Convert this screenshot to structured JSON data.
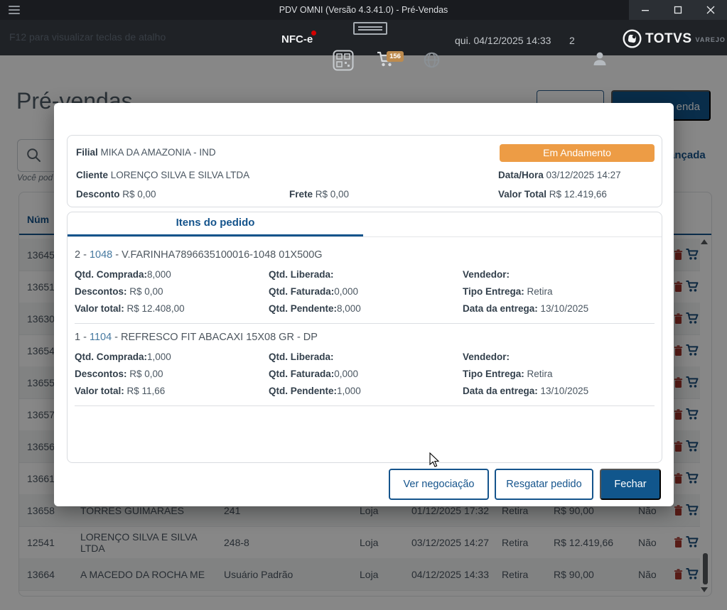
{
  "window": {
    "title": "PDV OMNI (Versão 4.3.41.0) - Pré-Vendas"
  },
  "toolbar": {
    "hotkey_hint": "F12 para visualizar teclas de atalho",
    "nfce_label": "NFC-e",
    "cart_badge": "156",
    "datetime": "qui. 04/12/2025 14:33",
    "counter": "2",
    "brand": "TOTVS",
    "brand_sub": "VAREJO"
  },
  "page": {
    "title": "Pré-vendas",
    "hint_fragment": "Você pod",
    "advanced_link_fragment": "ançada",
    "primary_button_fragment": "enda"
  },
  "table": {
    "header_fragment": "Núm",
    "rows": [
      {
        "num": "13645",
        "cliente": "",
        "cliente2": "",
        "vendedor": "",
        "origem": "",
        "data": "",
        "entrega": "",
        "valor": "",
        "flag": ""
      },
      {
        "num": "13651",
        "cliente": "",
        "cliente2": "",
        "vendedor": "",
        "origem": "",
        "data": "",
        "entrega": "",
        "valor": "",
        "flag": ""
      },
      {
        "num": "13630",
        "cliente": "",
        "cliente2": "",
        "vendedor": "",
        "origem": "",
        "data": "",
        "entrega": "",
        "valor": "",
        "flag": ""
      },
      {
        "num": "13654",
        "cliente": "",
        "cliente2": "",
        "vendedor": "",
        "origem": "",
        "data": "",
        "entrega": "",
        "valor": "",
        "flag": ""
      },
      {
        "num": "13655",
        "cliente": "",
        "cliente2": "",
        "vendedor": "",
        "origem": "",
        "data": "",
        "entrega": "",
        "valor": "",
        "flag": ""
      },
      {
        "num": "13657",
        "cliente": "",
        "cliente2": "",
        "vendedor": "",
        "origem": "",
        "data": "",
        "entrega": "",
        "valor": "",
        "flag": ""
      },
      {
        "num": "13656",
        "cliente": "",
        "cliente2": "",
        "vendedor": "",
        "origem": "",
        "data": "",
        "entrega": "",
        "valor": "",
        "flag": ""
      },
      {
        "num": "13661",
        "cliente": "",
        "cliente2": "",
        "vendedor": "",
        "origem": "",
        "data": "",
        "entrega": "",
        "valor": "",
        "flag": ""
      },
      {
        "num": "13658",
        "cliente": "",
        "cliente2": "TORRES GUIMARAES",
        "vendedor": "241",
        "origem": "Loja",
        "data": "01/12/2025 17:32",
        "entrega": "Retira",
        "valor": "R$ 90,00",
        "flag": "Não"
      },
      {
        "num": "12541",
        "cliente": "LORENÇO SILVA E SILVA LTDA",
        "cliente2": "",
        "vendedor": "248-8",
        "origem": "Loja",
        "data": "03/12/2025 14:27",
        "entrega": "Retira",
        "valor": "R$ 12.419,66",
        "flag": "Não"
      },
      {
        "num": "13664",
        "cliente": "A MACEDO DA ROCHA ME",
        "cliente2": "",
        "vendedor": "Usuário Padrão",
        "origem": "Loja",
        "data": "04/12/2025 14:33",
        "entrega": "Retira",
        "valor": "R$ 90,00",
        "flag": "Não"
      }
    ]
  },
  "modal": {
    "header": {
      "filial_label": "Filial",
      "filial_value": "MIKA DA AMAZONIA - IND",
      "status": "Em Andamento",
      "cliente_label": "Cliente",
      "cliente_value": "LORENÇO SILVA E SILVA LTDA",
      "datahora_label": "Data/Hora",
      "datahora_value": "03/12/2025 14:27",
      "desconto_label": "Desconto",
      "desconto_value": "R$ 0,00",
      "frete_label": "Frete",
      "frete_value": "R$ 0,00",
      "valortotal_label": "Valor Total",
      "valortotal_value": "R$ 12.419,66"
    },
    "tab_label": "Itens do pedido",
    "item_labels": {
      "qtd_comprada": "Qtd. Comprada:",
      "qtd_liberada": "Qtd. Liberada:",
      "vendedor": "Vendedor:",
      "descontos": "Descontos: ",
      "qtd_faturada": "Qtd. Faturada:",
      "tipo_entrega": "Tipo Entrega: ",
      "valor_total": "Valor total: ",
      "qtd_pendente": "Qtd. Pendente:",
      "data_entrega": "Data da entrega: "
    },
    "items": [
      {
        "seq": "2",
        "code": "1048",
        "desc": "V.FARINHA7896635100016-1048 01X500G",
        "qtd_comprada": "8,000",
        "qtd_liberada": "",
        "vendedor": "",
        "descontos": "R$ 0,00",
        "qtd_faturada": "0,000",
        "tipo_entrega": "Retira",
        "valor_total": "R$ 12.408,00",
        "qtd_pendente": "8,000",
        "data_entrega": "13/10/2025"
      },
      {
        "seq": "1",
        "code": "1104",
        "desc": "REFRESCO FIT ABACAXI 15X08 GR - DP",
        "qtd_comprada": "1,000",
        "qtd_liberada": "",
        "vendedor": "",
        "descontos": "R$ 0,00",
        "qtd_faturada": "0,000",
        "tipo_entrega": "Retira",
        "valor_total": "R$ 11,66",
        "qtd_pendente": "1,000",
        "data_entrega": "13/10/2025"
      }
    ],
    "buttons": {
      "ver": "Ver negociação",
      "resgatar": "Resgatar pedido",
      "fechar": "Fechar"
    }
  },
  "colors": {
    "accent": "#15548C",
    "status_badge": "#ED9C45",
    "trash": "#A6352C",
    "cart": "#1C4E7C",
    "cart_badge": "#BD8B4E",
    "nfce_dot": "#D40000",
    "titlebar": "#191B1F",
    "toolbar": "#1F2226"
  },
  "icons": {
    "menu-icon": "hamburger",
    "minimize-icon": "–",
    "maximize-icon": "□",
    "close-icon": "×",
    "qr-code-icon": "qr",
    "status-indicator-icon": "card",
    "cart-icon": "shopping cart",
    "globe-icon": "globe",
    "user-icon": "person",
    "brand-logo-icon": "TOTVS mark",
    "search-icon": "magnifier",
    "trash-icon": "delete",
    "scrollbar": "vertical"
  }
}
